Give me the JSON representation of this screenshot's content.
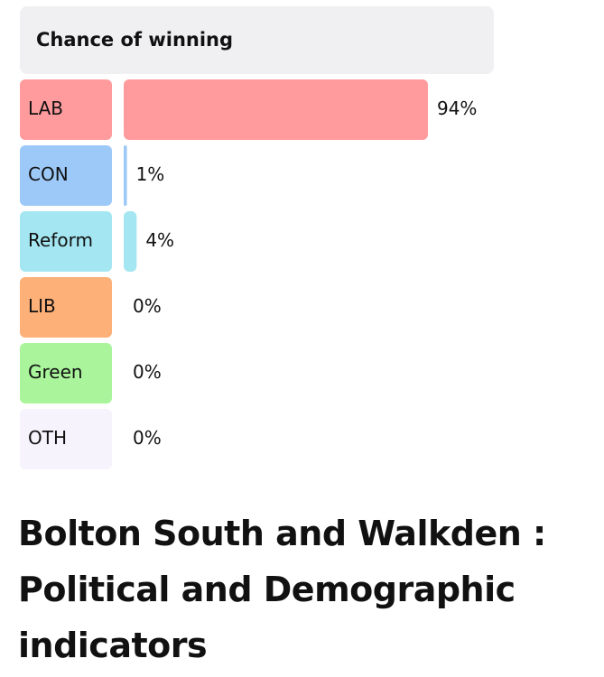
{
  "chart_data": {
    "type": "bar",
    "orientation": "horizontal",
    "title": "Chance of winning",
    "categories": [
      "LAB",
      "CON",
      "Reform",
      "LIB",
      "Green",
      "OTH"
    ],
    "values": [
      94,
      1,
      4,
      0,
      0,
      0
    ],
    "value_labels": [
      "94%",
      "1%",
      "4%",
      "0%",
      "0%",
      "0%"
    ],
    "colors": [
      "#ff9b9d",
      "#9dc9f9",
      "#a4e6f1",
      "#fdb078",
      "#aaf59c",
      "#f6f3fd"
    ]
  },
  "heading": "Bolton South and Walkden : Political and Demographic indicators"
}
